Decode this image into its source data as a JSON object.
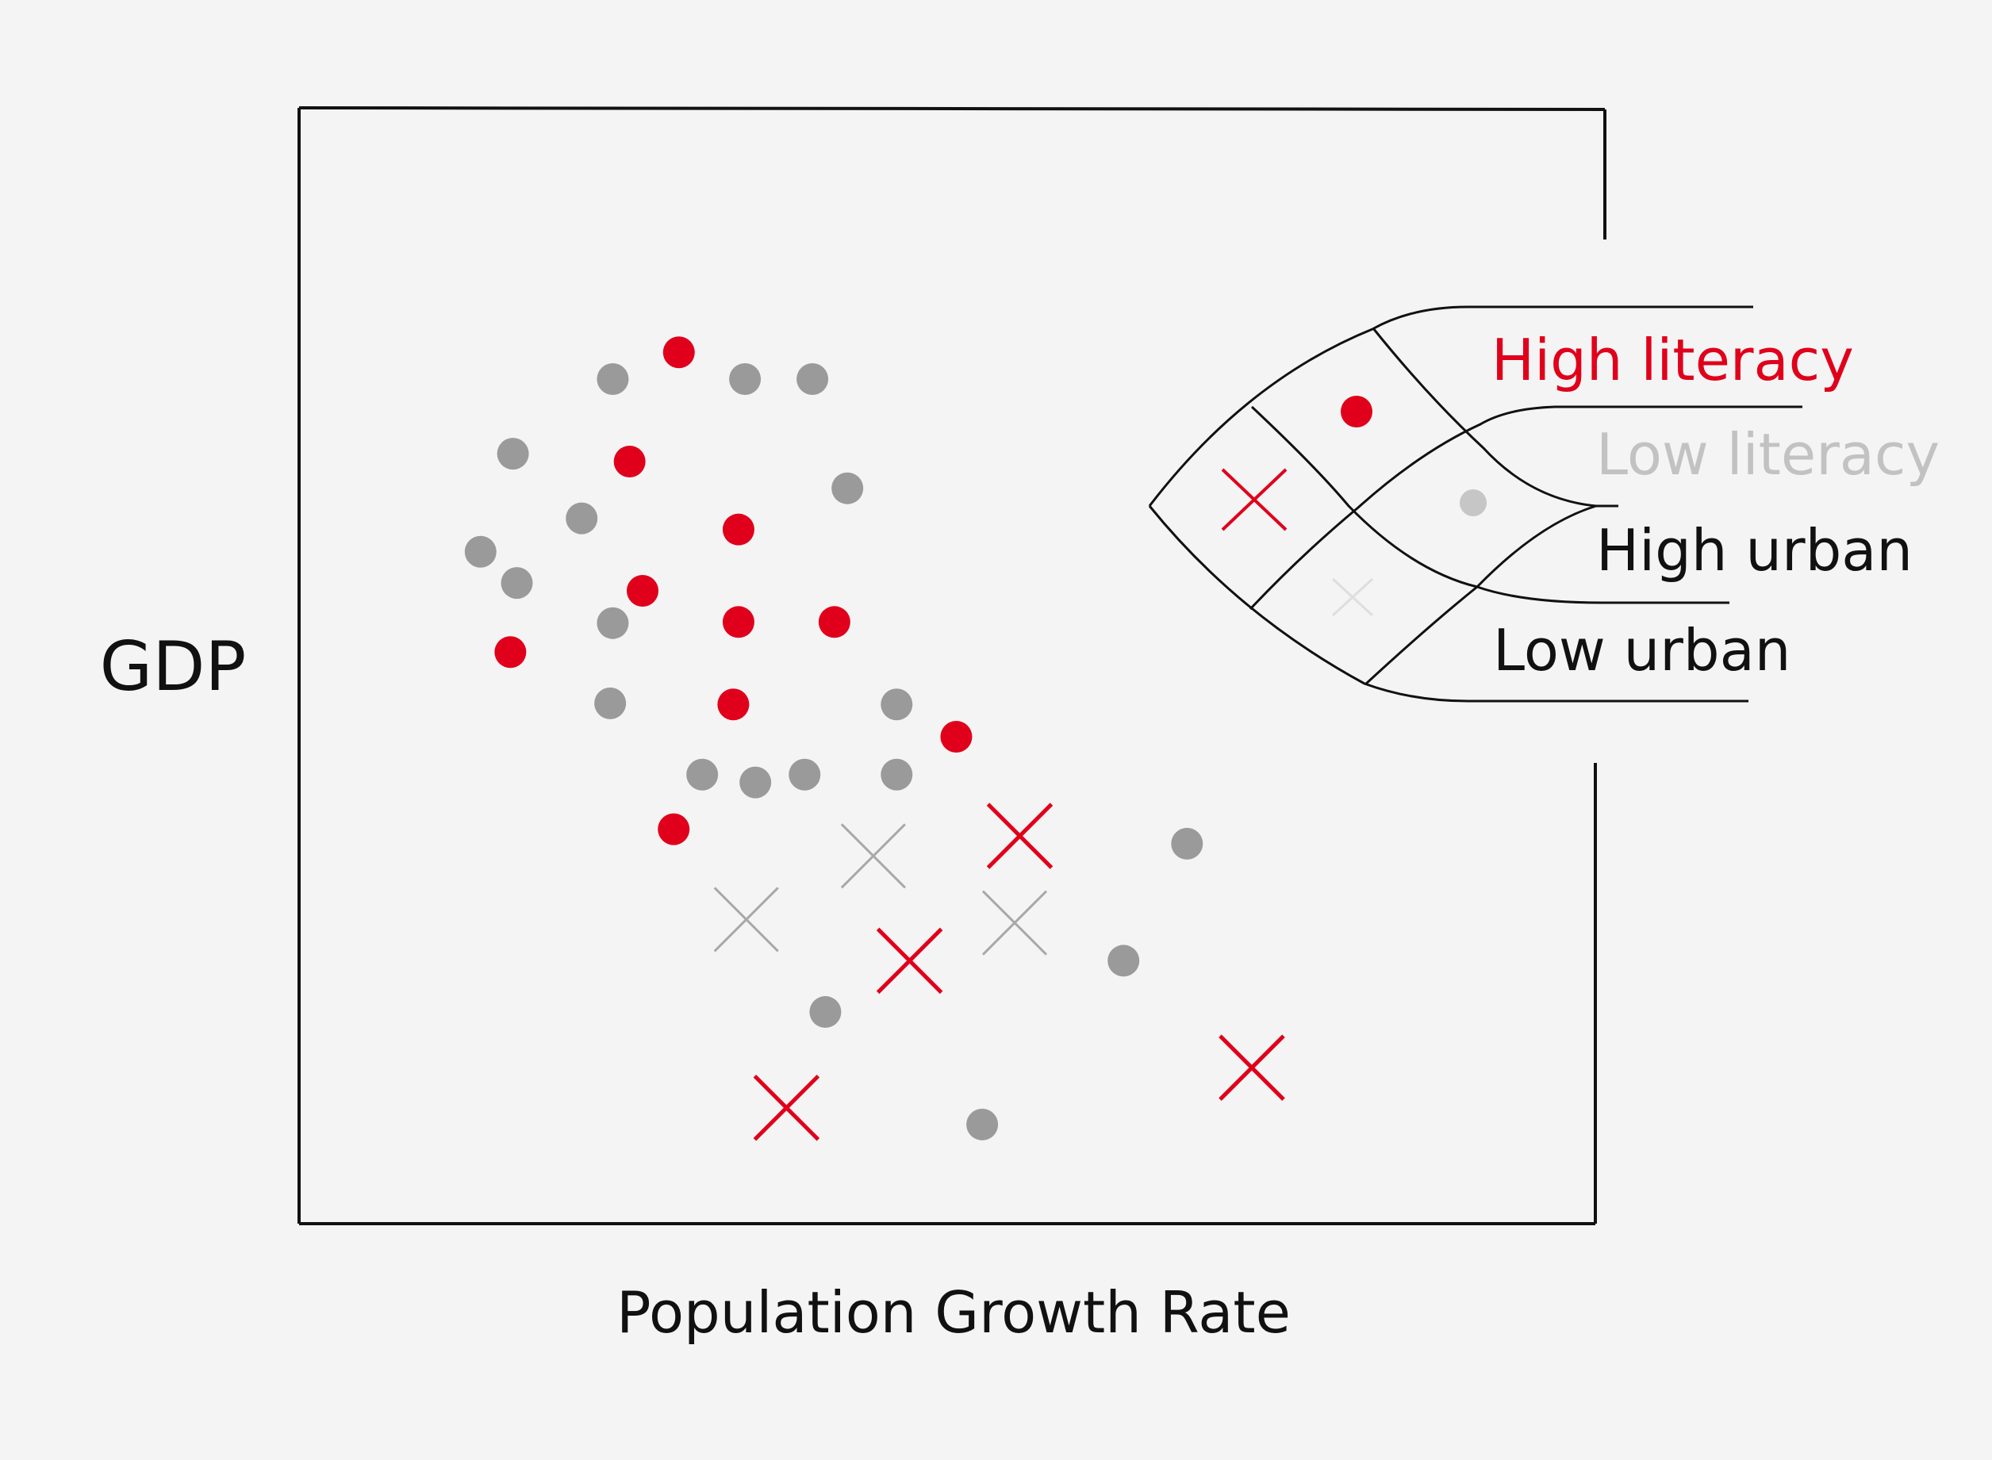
{
  "chart_data": {
    "type": "scatter",
    "title": "",
    "xlabel": "Population Growth Rate",
    "ylabel": "GDP",
    "xlim": [
      0,
      100
    ],
    "ylim": [
      0,
      100
    ],
    "grid": false,
    "legend_position": "right",
    "colors": {
      "high_literacy": "#e0001b",
      "low_literacy": "#9a9a9a",
      "faint": "#c4c4c4"
    },
    "legend": {
      "literacy": [
        {
          "label": "High literacy",
          "color": "#e0001b"
        },
        {
          "label": "Low literacy",
          "color": "#bdbdbd"
        }
      ],
      "urban": [
        {
          "label": "High urban",
          "marker": "circle",
          "color": "#111111"
        },
        {
          "label": "Low urban",
          "marker": "cross",
          "color": "#111111"
        }
      ]
    },
    "series": [
      {
        "name": "High literacy, High urban",
        "marker": "circle",
        "color": "#e0001b",
        "points": [
          [
            29.3,
            78.2
          ],
          [
            25.5,
            68.4
          ],
          [
            33.9,
            62.3
          ],
          [
            26.5,
            56.8
          ],
          [
            33.9,
            54.0
          ],
          [
            41.3,
            54.0
          ],
          [
            16.3,
            51.3
          ],
          [
            33.5,
            46.6
          ],
          [
            50.7,
            43.7
          ],
          [
            28.9,
            35.4
          ]
        ]
      },
      {
        "name": "Low literacy, High urban",
        "marker": "circle",
        "color": "#9a9a9a",
        "points": [
          [
            24.2,
            75.8
          ],
          [
            34.4,
            75.8
          ],
          [
            39.6,
            75.8
          ],
          [
            16.5,
            69.1
          ],
          [
            42.3,
            66.0
          ],
          [
            21.8,
            63.3
          ],
          [
            14.0,
            60.3
          ],
          [
            16.8,
            57.5
          ],
          [
            24.2,
            53.9
          ],
          [
            24.0,
            46.7
          ],
          [
            46.1,
            46.6
          ],
          [
            31.1,
            40.3
          ],
          [
            35.2,
            39.6
          ],
          [
            39.0,
            40.3
          ],
          [
            46.1,
            40.3
          ],
          [
            68.5,
            34.1
          ],
          [
            63.6,
            23.6
          ],
          [
            40.6,
            19.0
          ],
          [
            52.7,
            8.9
          ]
        ]
      },
      {
        "name": "High literacy, Low urban",
        "marker": "cross",
        "color": "#e0001b",
        "points": [
          [
            55.6,
            34.8
          ],
          [
            47.1,
            23.6
          ],
          [
            73.5,
            14.0
          ],
          [
            37.6,
            10.4
          ]
        ]
      },
      {
        "name": "Low literacy, Low urban",
        "marker": "cross",
        "color": "#a8a8a8",
        "points": [
          [
            44.3,
            33.0
          ],
          [
            34.5,
            27.3
          ],
          [
            55.2,
            27.0
          ]
        ]
      }
    ]
  }
}
